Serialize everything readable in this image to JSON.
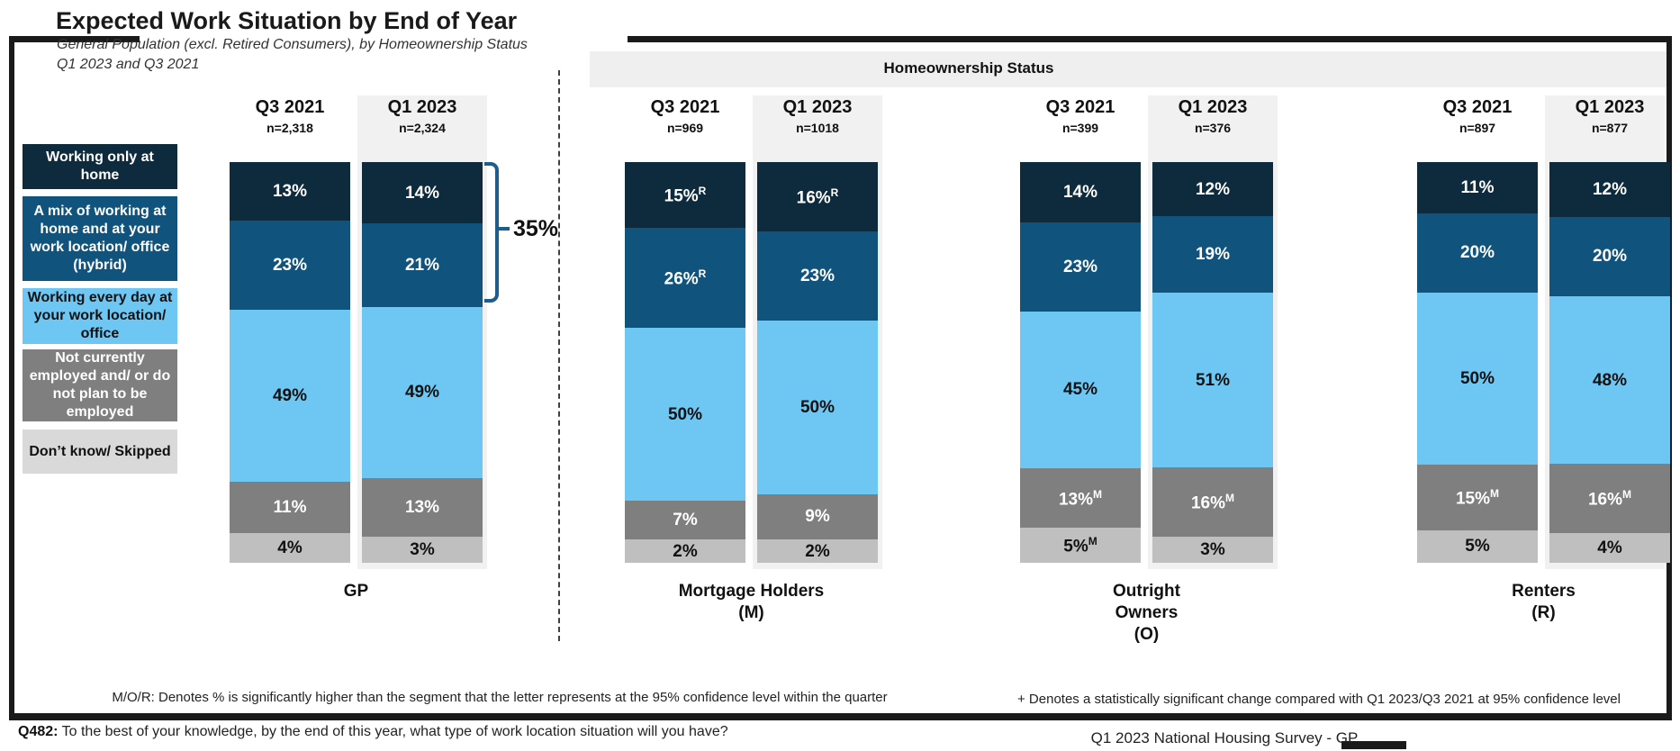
{
  "title": "Expected Work Situation by End of Year",
  "subtitle": {
    "line1": "General Population (excl. Retired Consumers), by Homeownership Status",
    "line2": "Q1 2023 and Q3 2021"
  },
  "header_band": {
    "label": "Homeownership Status"
  },
  "annotation": {
    "label": "35%",
    "applies_to": "GP Q1 2023 top two segments combined"
  },
  "colors": {
    "working_only_home": "#0e2b3d",
    "hybrid": "#10547e",
    "work_location": "#6ec6f2",
    "not_employed": "#7f7f7f",
    "dont_know": "#bfbfbf",
    "legend_dont_know": "#d9d9d9",
    "column_highlight_band": "#f1f1f1",
    "header_band": "#efefef",
    "bracket": "#1f5c8d"
  },
  "chart_data": {
    "type": "bar",
    "stacked": true,
    "unit": "percent",
    "legend_position": "left",
    "segments": [
      {
        "label": "Working only at home",
        "color": "#0e2b3d",
        "text_color": "#ffffff"
      },
      {
        "label": "A mix of working at home and at your work location/ office (hybrid)",
        "color": "#10547e",
        "text_color": "#ffffff"
      },
      {
        "label": "Working every day at your work location/ office",
        "color": "#6ec6f2",
        "text_color": "#111111"
      },
      {
        "label": "Not currently employed and/ or do not plan to be employed",
        "color": "#7f7f7f",
        "text_color": "#ffffff"
      },
      {
        "label": "Don’t know/ Skipped",
        "color": "#bfbfbf",
        "text_color": "#111111",
        "legend_color": "#d9d9d9"
      }
    ],
    "groups": [
      {
        "name_lines": [
          "GP"
        ],
        "bars": [
          {
            "period": "Q3 2021",
            "n": "n=2,318",
            "values": [
              13,
              23,
              49,
              11,
              4
            ],
            "labels": [
              "13%",
              "23%",
              "49%",
              "11%",
              "4%"
            ],
            "sups": [
              "",
              "",
              "",
              "",
              ""
            ],
            "highlighted": false
          },
          {
            "period": "Q1 2023",
            "n": "n=2,324",
            "values": [
              14,
              21,
              49,
              13,
              3
            ],
            "labels": [
              "14%",
              "21%",
              "49%",
              "13%",
              "3%"
            ],
            "sups": [
              "",
              "",
              "",
              "",
              ""
            ],
            "highlighted": true
          }
        ]
      },
      {
        "name_lines": [
          "Mortgage Holders",
          "(M)"
        ],
        "bars": [
          {
            "period": "Q3 2021",
            "n": "n=969",
            "values": [
              15,
              26,
              50,
              7,
              2
            ],
            "labels": [
              "15%",
              "26%",
              "50%",
              "7%",
              "2%"
            ],
            "sups": [
              "R",
              "R",
              "",
              "",
              ""
            ],
            "highlighted": false
          },
          {
            "period": "Q1 2023",
            "n": "n=1018",
            "values": [
              16,
              23,
              50,
              9,
              2
            ],
            "labels": [
              "16%",
              "23%",
              "50%",
              "9%",
              "2%"
            ],
            "sups": [
              "R",
              "",
              "",
              "",
              ""
            ],
            "highlighted": true
          }
        ]
      },
      {
        "name_lines": [
          "Outright",
          "Owners",
          "(O)"
        ],
        "bars": [
          {
            "period": "Q3 2021",
            "n": "n=399",
            "values": [
              14,
              23,
              45,
              13,
              5
            ],
            "labels": [
              "14%",
              "23%",
              "45%",
              "13%",
              "5%"
            ],
            "sups": [
              "",
              "",
              "",
              "M",
              "M"
            ],
            "highlighted": false
          },
          {
            "period": "Q1 2023",
            "n": "n=376",
            "values": [
              12,
              19,
              51,
              16,
              3
            ],
            "labels": [
              "12%",
              "19%",
              "51%",
              "16%",
              "3%"
            ],
            "sups": [
              "",
              "",
              "",
              "M",
              ""
            ],
            "highlighted": true
          }
        ]
      },
      {
        "name_lines": [
          "Renters",
          "(R)"
        ],
        "bars": [
          {
            "period": "Q3 2021",
            "n": "n=897",
            "values": [
              11,
              20,
              50,
              15,
              5
            ],
            "labels": [
              "11%",
              "20%",
              "50%",
              "15%",
              "5%"
            ],
            "sups": [
              "",
              "",
              "",
              "M",
              ""
            ],
            "highlighted": false
          },
          {
            "period": "Q1 2023",
            "n": "n=877",
            "values": [
              12,
              20,
              48,
              16,
              4
            ],
            "labels": [
              "12%",
              "20%",
              "48%",
              "16%",
              "4%"
            ],
            "sups": [
              "",
              "",
              "",
              "M",
              ""
            ],
            "highlighted": true
          }
        ]
      }
    ],
    "ylim": [
      0,
      100
    ],
    "grid": false
  },
  "footnotes": {
    "left": "M/O/R: Denotes % is significantly higher than the segment that the letter represents at the 95% confidence level within the quarter",
    "right": "+ Denotes a statistically significant change compared with Q1 2023/Q3 2021 at 95% confidence level"
  },
  "question": {
    "prefix": "Q482:",
    "text": " To the best of your knowledge, by the end of this year, what type of work location situation will you have?"
  },
  "source": "Q1 2023 National Housing Survey - GP"
}
